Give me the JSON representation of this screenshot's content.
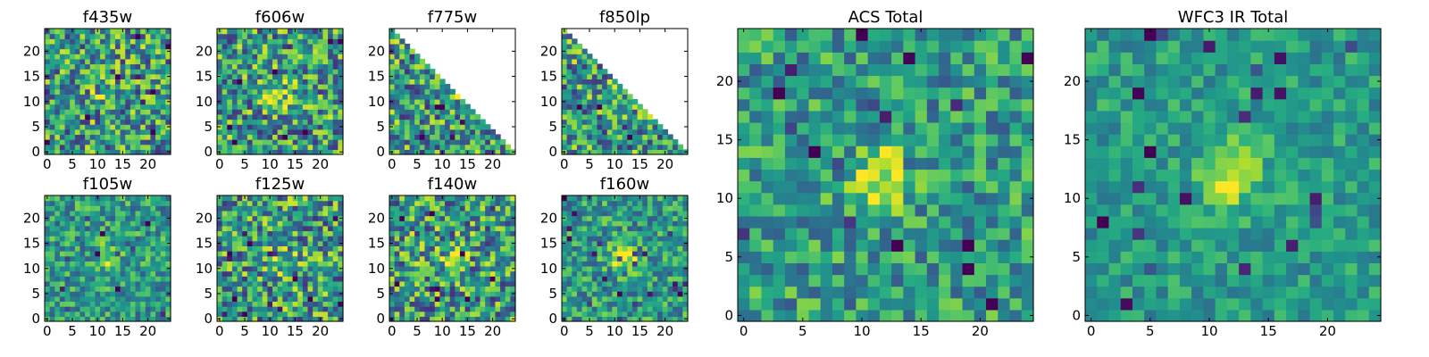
{
  "figure": {
    "colormap": "viridis",
    "colormap_stops": [
      "#440154",
      "#3b528b",
      "#21908d",
      "#5dc863",
      "#fde725"
    ]
  },
  "chart_data": [
    {
      "type": "heatmap",
      "title": "f435w",
      "grid_size": [
        25,
        25
      ],
      "xlim": [
        0,
        24
      ],
      "ylim": [
        0,
        24
      ],
      "xticks": [
        0,
        5,
        10,
        15,
        20
      ],
      "yticks": [
        0,
        5,
        10,
        15,
        20
      ],
      "masked_region": "none",
      "central_source": "weak",
      "noise": "high"
    },
    {
      "type": "heatmap",
      "title": "f606w",
      "grid_size": [
        25,
        25
      ],
      "xlim": [
        0,
        24
      ],
      "ylim": [
        0,
        24
      ],
      "xticks": [
        0,
        5,
        10,
        15,
        20
      ],
      "yticks": [
        0,
        5,
        10,
        15,
        20
      ],
      "masked_region": "none",
      "central_source": "moderate",
      "noise": "high"
    },
    {
      "type": "heatmap",
      "title": "f775w",
      "grid_size": [
        25,
        25
      ],
      "xlim": [
        0,
        24
      ],
      "ylim": [
        0,
        24
      ],
      "xticks": [
        0,
        5,
        10,
        15,
        20
      ],
      "yticks": [
        0,
        5,
        10,
        15,
        20
      ],
      "masked_region": "upper-right triangle (no data)",
      "central_source": "weak",
      "noise": "high"
    },
    {
      "type": "heatmap",
      "title": "f850lp",
      "grid_size": [
        25,
        25
      ],
      "xlim": [
        0,
        24
      ],
      "ylim": [
        0,
        24
      ],
      "xticks": [
        0,
        5,
        10,
        15,
        20
      ],
      "yticks": [
        0,
        5,
        10,
        15,
        20
      ],
      "masked_region": "upper-right triangle (no data)",
      "central_source": "weak",
      "noise": "high"
    },
    {
      "type": "heatmap",
      "title": "f105w",
      "grid_size": [
        25,
        25
      ],
      "xlim": [
        0,
        24
      ],
      "ylim": [
        0,
        24
      ],
      "xticks": [
        0,
        5,
        10,
        15,
        20
      ],
      "yticks": [
        0,
        5,
        10,
        15,
        20
      ],
      "masked_region": "none",
      "central_source": "moderate",
      "noise": "medium"
    },
    {
      "type": "heatmap",
      "title": "f125w",
      "grid_size": [
        25,
        25
      ],
      "xlim": [
        0,
        24
      ],
      "ylim": [
        0,
        24
      ],
      "xticks": [
        0,
        5,
        10,
        15,
        20
      ],
      "yticks": [
        0,
        5,
        10,
        15,
        20
      ],
      "masked_region": "none",
      "central_source": "moderate",
      "noise": "high"
    },
    {
      "type": "heatmap",
      "title": "f140w",
      "grid_size": [
        25,
        25
      ],
      "xlim": [
        0,
        24
      ],
      "ylim": [
        0,
        24
      ],
      "xticks": [
        0,
        5,
        10,
        15,
        20
      ],
      "yticks": [
        0,
        5,
        10,
        15,
        20
      ],
      "masked_region": "none",
      "central_source": "moderate",
      "noise": "high"
    },
    {
      "type": "heatmap",
      "title": "f160w",
      "grid_size": [
        25,
        25
      ],
      "xlim": [
        0,
        24
      ],
      "ylim": [
        0,
        24
      ],
      "xticks": [
        0,
        5,
        10,
        15,
        20
      ],
      "yticks": [
        0,
        5,
        10,
        15,
        20
      ],
      "masked_region": "none",
      "central_source": "strong",
      "noise": "medium"
    },
    {
      "type": "heatmap",
      "title": "ACS Total",
      "grid_size": [
        25,
        25
      ],
      "xlim": [
        0,
        24
      ],
      "ylim": [
        0,
        24
      ],
      "xticks": [
        0,
        5,
        10,
        15,
        20
      ],
      "yticks": [
        0,
        5,
        10,
        15,
        20
      ],
      "masked_region": "none",
      "central_source": "strong",
      "noise": "medium"
    },
    {
      "type": "heatmap",
      "title": "WFC3 IR Total",
      "grid_size": [
        25,
        25
      ],
      "xlim": [
        0,
        24
      ],
      "ylim": [
        0,
        24
      ],
      "xticks": [
        0,
        5,
        10,
        15,
        20
      ],
      "yticks": [
        0,
        5,
        10,
        15,
        20
      ],
      "masked_region": "none",
      "central_source": "strong",
      "noise": "low"
    }
  ]
}
